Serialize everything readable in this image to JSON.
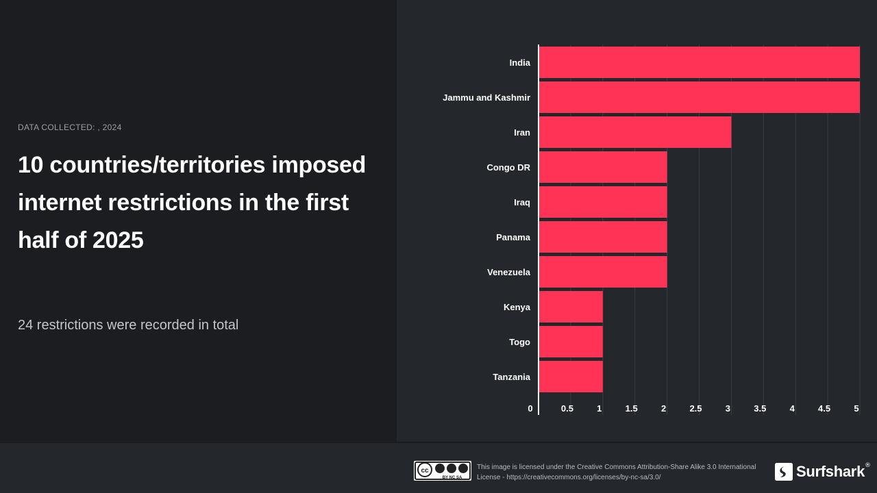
{
  "meta": {
    "data_collected": "DATA COLLECTED: , 2024"
  },
  "headline": {
    "title": "10 countries/territories imposed internet restrictions in the first half of 2025",
    "subtitle": "24 restrictions were recorded in total"
  },
  "chart_data": {
    "type": "bar",
    "orientation": "horizontal",
    "categories": [
      "India",
      "Jammu and Kashmir",
      "Iran",
      "Congo DR",
      "Iraq",
      "Panama",
      "Venezuela",
      "Kenya",
      "Togo",
      "Tanzania"
    ],
    "values": [
      5,
      5,
      3,
      2,
      2,
      2,
      2,
      1,
      1,
      1
    ],
    "xlim": [
      0,
      5
    ],
    "ticks": [
      0,
      0.5,
      1,
      1.5,
      2,
      2.5,
      3,
      3.5,
      4,
      4.5,
      5
    ],
    "tick_labels": [
      "0",
      "0.5",
      "1",
      "1.5",
      "2",
      "2.5",
      "3",
      "3.5",
      "4",
      "4.5",
      "5"
    ],
    "grid": true,
    "bar_color": "#ff3355"
  },
  "footer": {
    "cc_badge": {
      "text": "BY NC SA"
    },
    "license_text": "This image is licensed under the Creative Commons Attribution-Share Alike 3.0 International License - https://creativecommons.org/licenses/by-nc-sa/3.0/",
    "brand": "Surfshark",
    "brand_mark": "®"
  },
  "colors": {
    "background": "#24272b",
    "left_panel": "#1b1d21",
    "accent": "#ff3355"
  }
}
